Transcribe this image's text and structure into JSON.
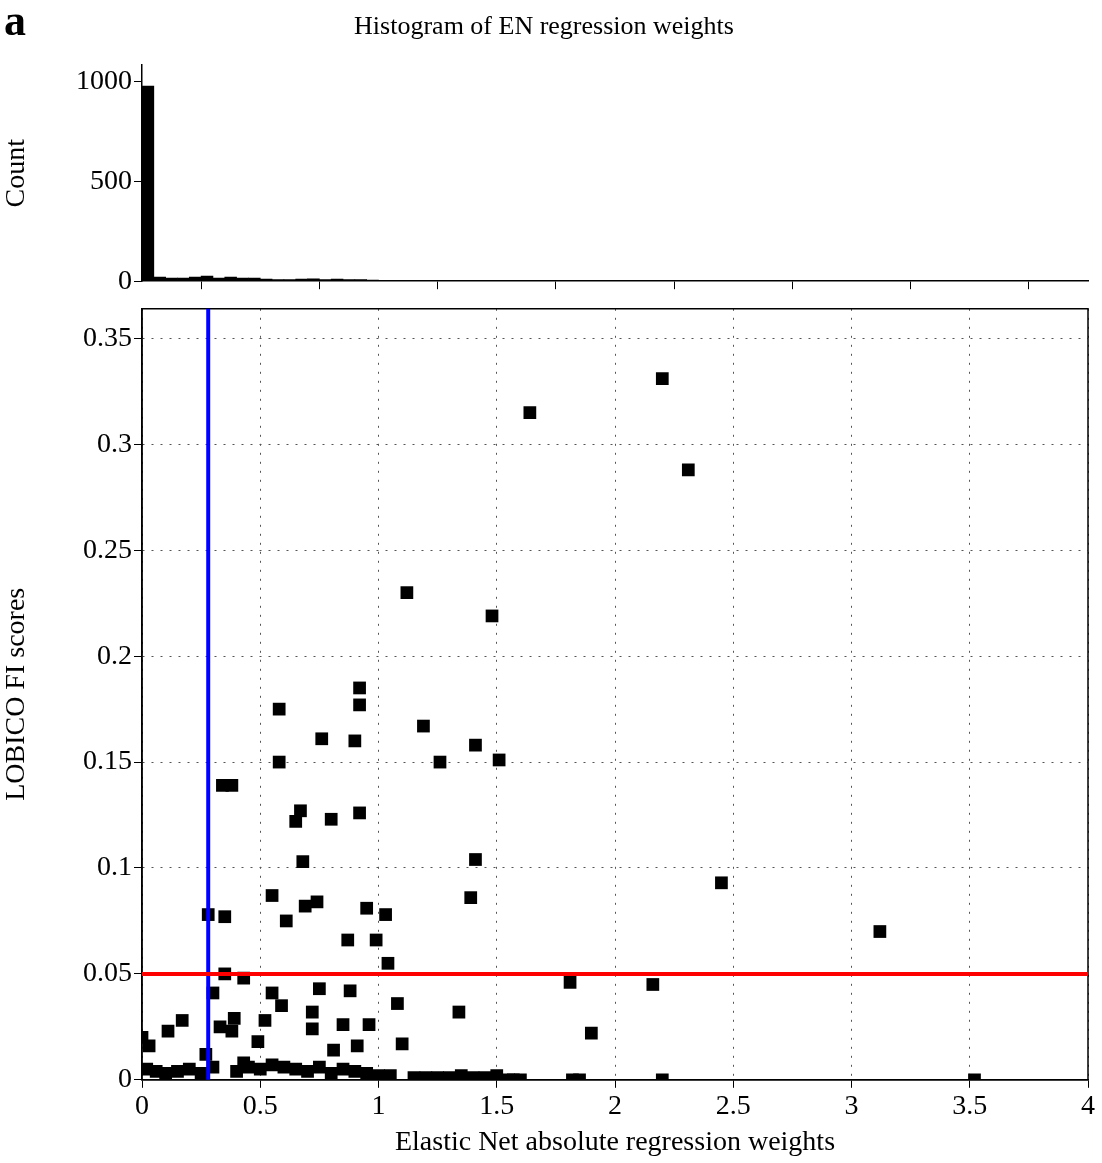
{
  "chart_data": [
    {
      "type": "histogram",
      "title": "Histogram of EN regression weights",
      "ylabel": "Count",
      "annotations": [
        "a"
      ],
      "bins": [
        0,
        0.05,
        0.1,
        0.15,
        0.2,
        0.25,
        0.3,
        0.35,
        0.4,
        0.45,
        0.5,
        0.55,
        0.6,
        0.65,
        0.7,
        0.75,
        0.8,
        0.85,
        0.9,
        0.95,
        1.0,
        1.05,
        1.1,
        1.15
      ],
      "values": [
        975,
        20,
        15,
        15,
        20,
        25,
        15,
        20,
        15,
        15,
        10,
        8,
        8,
        10,
        12,
        8,
        10,
        8,
        8,
        5,
        3,
        3,
        3
      ],
      "color": "#000000",
      "xlim": [
        0,
        4
      ],
      "xticks": [
        0,
        0.5,
        1,
        1.5,
        2,
        2.5,
        3,
        3.5,
        4
      ],
      "ylim": [
        0,
        1080
      ],
      "yticks": [
        0,
        500,
        1000
      ],
      "tick_labels": "y",
      "grid": false
    },
    {
      "type": "scatter",
      "xlabel": "Elastic Net absolute regression weights",
      "ylabel": "LOBICO FI scores",
      "xlim": [
        0,
        4
      ],
      "xticks": [
        0,
        0.5,
        1,
        1.5,
        2,
        2.5,
        3,
        3.5,
        4
      ],
      "ylim": [
        0,
        0.364
      ],
      "yticks": [
        0,
        0.05,
        0.1,
        0.15,
        0.2,
        0.25,
        0.3,
        0.35
      ],
      "grid": true,
      "marker": "square",
      "series": [
        {
          "color": "#000000",
          "x": [
            2.2,
            1.64,
            2.31,
            1.12,
            1.48,
            0.92,
            0.92,
            0.58,
            1.19,
            0.76,
            0.9,
            1.41,
            0.58,
            1.26,
            1.51,
            0.34,
            0.38,
            0.67,
            0.65,
            0.8,
            0.92,
            0.68,
            1.41,
            0.55,
            1.39,
            0.74,
            0.69,
            0.28,
            0.35,
            0.61,
            0.95,
            1.03,
            0.87,
            0.99,
            1.04,
            2.45,
            3.12,
            0.35,
            0.43,
            0.3,
            0.55,
            0.75,
            0.88,
            1.08,
            0.59,
            0.39,
            0.72,
            1.34,
            0.17,
            0.52,
            0.85,
            0.96,
            0.33,
            0.11,
            0.38,
            0.49,
            1.1,
            0,
            0.72,
            0.91,
            0.81,
            0.27,
            0.43,
            0.03,
            1.81,
            2.16,
            1.9,
            1.57,
            1.82,
            1.85,
            2.2,
            3.52,
            0.02,
            0.06,
            0.1,
            0.15,
            0.2,
            0.25,
            0.3,
            0.4,
            0.45,
            0.5,
            0.55,
            0.6,
            0.65,
            0.7,
            0.75,
            0.8,
            0.85,
            0.9,
            0.95,
            1.0,
            1.05,
            1.15,
            1.2,
            1.25,
            1.3,
            1.35,
            1.4,
            1.45,
            1.5,
            1.55,
            1.6
          ],
          "values": [
            0.331,
            0.315,
            0.288,
            0.23,
            0.219,
            0.185,
            0.177,
            0.175,
            0.167,
            0.161,
            0.16,
            0.158,
            0.15,
            0.15,
            0.151,
            0.139,
            0.139,
            0.127,
            0.122,
            0.123,
            0.126,
            0.103,
            0.104,
            0.087,
            0.086,
            0.084,
            0.082,
            0.078,
            0.077,
            0.075,
            0.081,
            0.078,
            0.066,
            0.066,
            0.055,
            0.093,
            0.07,
            0.05,
            0.048,
            0.041,
            0.041,
            0.043,
            0.042,
            0.036,
            0.035,
            0.029,
            0.032,
            0.032,
            0.028,
            0.028,
            0.026,
            0.026,
            0.025,
            0.023,
            0.023,
            0.018,
            0.017,
            0.02,
            0.024,
            0.016,
            0.014,
            0.012,
            0.008,
            0.016,
            0.046,
            0.045,
            0.022,
            0,
            0,
            0,
            0,
            0,
            0.005,
            0.004,
            0.003,
            0.004,
            0.005,
            0.003,
            0.006,
            0.004,
            0.006,
            0.005,
            0.007,
            0.006,
            0.005,
            0.004,
            0.006,
            0.003,
            0.005,
            0.004,
            0.003,
            0.002,
            0.002,
            0.001,
            0.001,
            0.001,
            0.001,
            0.002,
            0.001,
            0.001,
            0.002,
            0,
            0
          ]
        }
      ],
      "ref_lines": [
        {
          "axis": "x",
          "value": 0.28,
          "color": "#0000ff"
        },
        {
          "axis": "y",
          "value": 0.05,
          "color": "#ff0000"
        }
      ]
    }
  ]
}
